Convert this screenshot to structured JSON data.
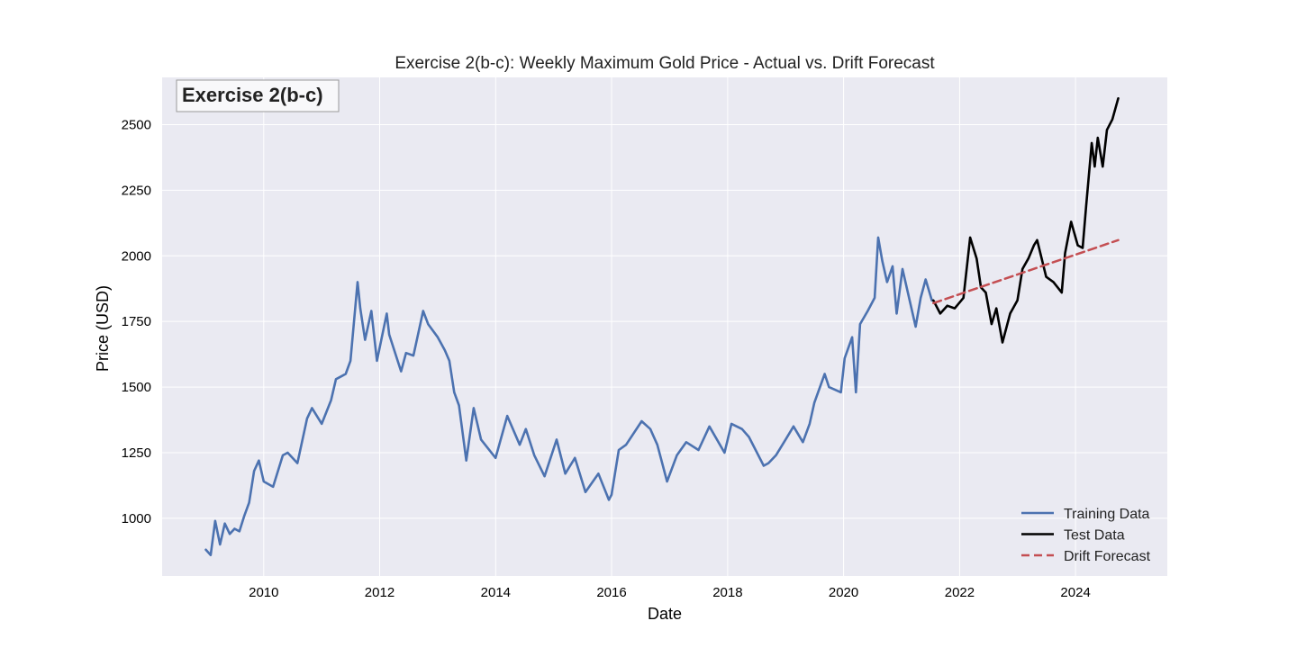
{
  "chart_data": {
    "type": "line",
    "title": "Exercise 2(b-c): Weekly Maximum Gold Price - Actual vs. Drift Forecast",
    "corner_label": "Exercise 2(b-c)",
    "xlabel": "Date",
    "ylabel": "Price (USD)",
    "xlim": [
      "2008-04-01",
      "2025-08-01"
    ],
    "ylim": [
      780,
      2680
    ],
    "x_ticks": [
      "2010",
      "2012",
      "2014",
      "2016",
      "2018",
      "2020",
      "2022",
      "2024"
    ],
    "y_ticks": [
      1000,
      1250,
      1500,
      1750,
      2000,
      2250,
      2500
    ],
    "grid": true,
    "legend_position": "lower-right",
    "series": [
      {
        "name": "Training Data",
        "color": "#4c72b0",
        "style": "solid",
        "x": [
          "2009-01-01",
          "2009-02-01",
          "2009-03-01",
          "2009-04-01",
          "2009-05-01",
          "2009-06-01",
          "2009-07-01",
          "2009-08-01",
          "2009-09-01",
          "2009-10-01",
          "2009-11-01",
          "2009-12-01",
          "2010-01-01",
          "2010-03-01",
          "2010-05-01",
          "2010-06-01",
          "2010-08-01",
          "2010-10-01",
          "2010-11-01",
          "2011-01-01",
          "2011-03-01",
          "2011-04-01",
          "2011-06-01",
          "2011-07-01",
          "2011-08-15",
          "2011-09-01",
          "2011-10-01",
          "2011-11-10",
          "2011-12-15",
          "2012-02-15",
          "2012-03-01",
          "2012-05-15",
          "2012-06-15",
          "2012-08-01",
          "2012-10-01",
          "2012-11-01",
          "2013-01-01",
          "2013-02-15",
          "2013-03-15",
          "2013-04-15",
          "2013-05-15",
          "2013-06-30",
          "2013-08-15",
          "2013-10-01",
          "2013-12-31",
          "2014-03-15",
          "2014-06-01",
          "2014-07-10",
          "2014-09-01",
          "2014-11-05",
          "2015-01-20",
          "2015-03-15",
          "2015-05-15",
          "2015-07-20",
          "2015-10-10",
          "2015-12-15",
          "2016-01-01",
          "2016-02-15",
          "2016-04-01",
          "2016-07-08",
          "2016-09-01",
          "2016-10-15",
          "2016-12-15",
          "2017-02-15",
          "2017-04-15",
          "2017-07-01",
          "2017-09-08",
          "2017-12-12",
          "2018-01-25",
          "2018-04-01",
          "2018-05-15",
          "2018-08-16",
          "2018-09-15",
          "2018-11-01",
          "2019-01-01",
          "2019-02-20",
          "2019-04-20",
          "2019-06-01",
          "2019-07-01",
          "2019-09-04",
          "2019-10-01",
          "2019-12-15",
          "2020-01-08",
          "2020-02-24",
          "2020-03-19",
          "2020-04-14",
          "2020-06-01",
          "2020-07-15",
          "2020-08-06",
          "2020-09-01",
          "2020-10-01",
          "2020-11-05",
          "2020-11-30",
          "2021-01-06",
          "2021-02-05",
          "2021-03-30",
          "2021-05-01",
          "2021-06-01",
          "2021-07-10"
        ],
        "y": [
          880,
          860,
          990,
          900,
          980,
          940,
          960,
          950,
          1010,
          1060,
          1180,
          1220,
          1140,
          1120,
          1240,
          1250,
          1210,
          1380,
          1420,
          1360,
          1450,
          1530,
          1550,
          1600,
          1900,
          1800,
          1680,
          1790,
          1600,
          1780,
          1700,
          1560,
          1630,
          1620,
          1790,
          1740,
          1690,
          1640,
          1600,
          1480,
          1430,
          1220,
          1420,
          1300,
          1230,
          1390,
          1280,
          1340,
          1240,
          1160,
          1300,
          1170,
          1230,
          1100,
          1170,
          1070,
          1090,
          1260,
          1280,
          1370,
          1340,
          1280,
          1140,
          1240,
          1290,
          1260,
          1350,
          1250,
          1360,
          1340,
          1310,
          1200,
          1210,
          1240,
          1300,
          1350,
          1290,
          1360,
          1440,
          1550,
          1500,
          1480,
          1610,
          1690,
          1480,
          1740,
          1790,
          1840,
          2070,
          1980,
          1900,
          1960,
          1780,
          1950,
          1870,
          1730,
          1840,
          1910,
          1830
        ]
      },
      {
        "name": "Test Data",
        "color": "#000000",
        "style": "solid",
        "x": [
          "2021-07-20",
          "2021-09-01",
          "2021-10-15",
          "2021-12-01",
          "2022-01-25",
          "2022-03-08",
          "2022-04-18",
          "2022-05-15",
          "2022-06-15",
          "2022-07-21",
          "2022-08-20",
          "2022-09-28",
          "2022-11-15",
          "2022-12-31",
          "2023-02-01",
          "2023-03-10",
          "2023-04-14",
          "2023-05-04",
          "2023-06-30",
          "2023-08-15",
          "2023-10-06",
          "2023-10-27",
          "2023-12-04",
          "2024-01-15",
          "2024-02-15",
          "2024-03-08",
          "2024-04-12",
          "2024-05-01",
          "2024-05-20",
          "2024-06-20",
          "2024-07-17",
          "2024-08-20",
          "2024-09-26"
        ],
        "y": [
          1830,
          1780,
          1810,
          1800,
          1840,
          2070,
          1990,
          1880,
          1860,
          1740,
          1800,
          1670,
          1780,
          1830,
          1950,
          1990,
          2040,
          2060,
          1920,
          1900,
          1860,
          2010,
          2130,
          2040,
          2030,
          2190,
          2430,
          2340,
          2450,
          2340,
          2480,
          2520,
          2600
        ]
      },
      {
        "name": "Drift Forecast",
        "color": "#c44e52",
        "style": "dashed",
        "x": [
          "2021-07-20",
          "2024-09-26"
        ],
        "y": [
          1820,
          2060
        ]
      }
    ]
  }
}
